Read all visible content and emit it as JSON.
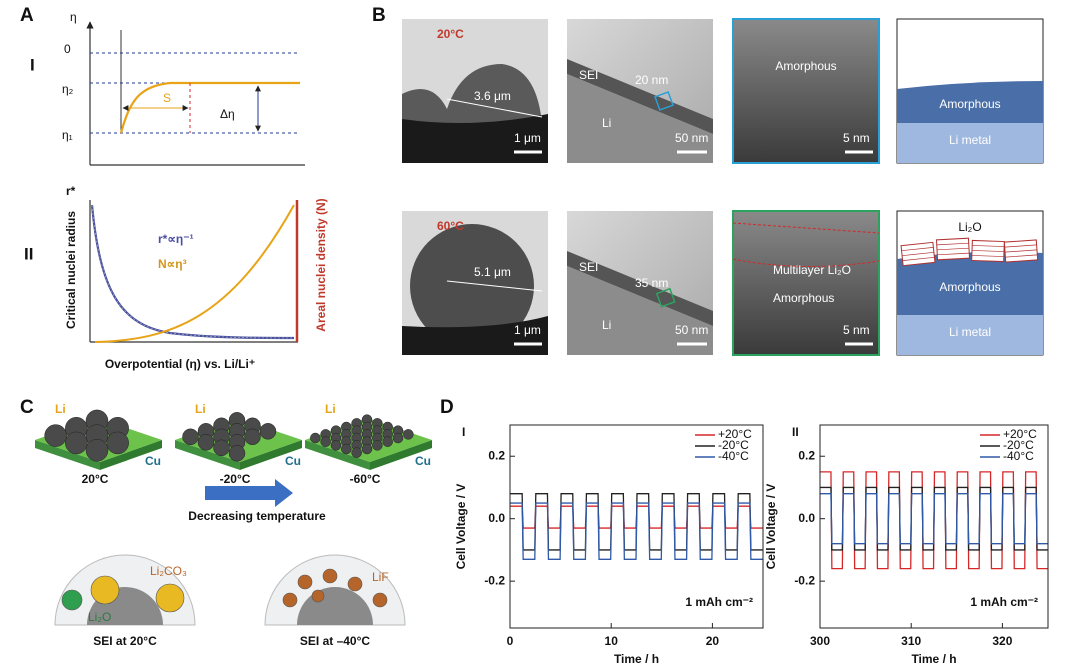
{
  "panel_a": {
    "label": "A",
    "part1": {
      "label": "I",
      "y_symbol": "η",
      "levels": [
        "0",
        "η₂",
        "η₁"
      ],
      "s": "S",
      "delta": "Δη"
    },
    "part2": {
      "label": "II",
      "y_symbol": "r*",
      "eq1": "r*∝η⁻¹",
      "eq2": "N∝η³",
      "y_label": "Critical nuclei radius",
      "y2_label": "Areal nuclei density (N)",
      "x_label": "Overpotential (η) vs. Li/Li⁺"
    }
  },
  "panel_b": {
    "label": "B",
    "rows": [
      {
        "temp": "20°C",
        "particle_size": "3.6 μm",
        "scale1": "1 μm",
        "sei": "SEI",
        "thickness": "20 nm",
        "li": "Li",
        "scale2": "50 nm",
        "amorphous": "Amorphous",
        "scale3": "5 nm",
        "model_amorphous": "Amorphous",
        "model_li": "Li metal"
      },
      {
        "temp": "60°C",
        "particle_size": "5.1 μm",
        "scale1": "1 μm",
        "sei": "SEI",
        "thickness": "35 nm",
        "li": "Li",
        "scale2": "50 nm",
        "multilayer": "Multilayer Li₂O",
        "amorphous": "Amorphous",
        "scale3": "5 nm",
        "model_li2o": "Li₂O",
        "model_amorphous": "Amorphous",
        "model_li": "Li metal"
      }
    ]
  },
  "panel_c": {
    "label": "C",
    "substrates": [
      {
        "top": "Li",
        "bottom": "Cu",
        "temp": "20°C"
      },
      {
        "top": "Li",
        "bottom": "Cu",
        "temp": "-20°C"
      },
      {
        "top": "Li",
        "bottom": "Cu",
        "temp": "-60°C"
      }
    ],
    "arrow": "Decreasing temperature",
    "sei": [
      {
        "species": [
          "Li₂CO₃",
          "Li₂O"
        ],
        "caption": "SEI at 20°C"
      },
      {
        "species": [
          "LiF"
        ],
        "caption": "SEI at –40°C"
      }
    ]
  },
  "panel_d": {
    "label": "D"
  },
  "chart_data": [
    {
      "type": "line",
      "title": "I",
      "x_label": "Time / h",
      "y_label": "Cell Voltage / V",
      "annotation": "1 mAh cm⁻²",
      "xlim": [
        0,
        25
      ],
      "xticks": [
        0,
        10,
        20
      ],
      "ylim": [
        -0.35,
        0.3
      ],
      "yticks": [
        -0.2,
        {
          "value": 0,
          "label": "0.0"
        },
        0.2
      ],
      "x": [
        0.05,
        1.2,
        1.3,
        2.45,
        2.55,
        3.7,
        3.8,
        4.95,
        5.05,
        6.2,
        6.3,
        7.45,
        7.55,
        8.7,
        8.8,
        9.95,
        10.05,
        11.2,
        11.3,
        12.45,
        12.55,
        13.7,
        13.8,
        14.95,
        15.05,
        16.2,
        16.3,
        17.45,
        17.55,
        18.7,
        18.8,
        19.95,
        20.05,
        21.2,
        21.3,
        22.45,
        22.55,
        23.7,
        23.8,
        24.95
      ],
      "series": [
        {
          "name": "+20°C",
          "color": "#d62728",
          "values": [
            0.04,
            0.04,
            -0.03,
            -0.03,
            0.04,
            0.04,
            -0.03,
            -0.03,
            0.04,
            0.04,
            -0.03,
            -0.03,
            0.04,
            0.04,
            -0.03,
            -0.03,
            0.04,
            0.04,
            -0.03,
            -0.03,
            0.04,
            0.04,
            -0.03,
            -0.03,
            0.04,
            0.04,
            -0.03,
            -0.03,
            0.04,
            0.04,
            -0.03,
            -0.03,
            0.04,
            0.04,
            -0.03,
            -0.03,
            0.04,
            0.04,
            -0.03,
            -0.03
          ]
        },
        {
          "name": "-20°C",
          "color": "#222222",
          "values": [
            0.08,
            0.08,
            -0.1,
            -0.1,
            0.08,
            0.08,
            -0.1,
            -0.1,
            0.08,
            0.08,
            -0.1,
            -0.1,
            0.08,
            0.08,
            -0.1,
            -0.1,
            0.08,
            0.08,
            -0.1,
            -0.1,
            0.08,
            0.08,
            -0.1,
            -0.1,
            0.08,
            0.08,
            -0.1,
            -0.1,
            0.08,
            0.08,
            -0.1,
            -0.1,
            0.08,
            0.08,
            -0.1,
            -0.1,
            0.08,
            0.08,
            -0.1,
            -0.1
          ]
        },
        {
          "name": "-40°C",
          "color": "#2f5aa8",
          "values": [
            0.05,
            0.05,
            -0.13,
            -0.13,
            0.05,
            0.05,
            -0.13,
            -0.13,
            0.05,
            0.05,
            -0.13,
            -0.13,
            0.05,
            0.05,
            -0.13,
            -0.13,
            0.05,
            0.05,
            -0.13,
            -0.13,
            0.05,
            0.05,
            -0.13,
            -0.13,
            0.05,
            0.05,
            -0.13,
            -0.13,
            0.05,
            0.05,
            -0.13,
            -0.13,
            0.05,
            0.05,
            -0.13,
            -0.13,
            0.05,
            0.05,
            -0.13,
            -0.13
          ]
        }
      ]
    },
    {
      "type": "line",
      "title": "II",
      "x_label": "Time / h",
      "y_label": "Cell Voltage / V",
      "annotation": "1 mAh cm⁻²",
      "xlim": [
        300,
        325
      ],
      "xticks": [
        300,
        310,
        320
      ],
      "ylim": [
        -0.35,
        0.3
      ],
      "yticks": [
        -0.2,
        {
          "value": 0,
          "label": "0.0"
        },
        0.2
      ],
      "x": [
        300.05,
        301.2,
        301.3,
        302.45,
        302.55,
        303.7,
        303.8,
        304.95,
        305.05,
        306.2,
        306.3,
        307.45,
        307.55,
        308.7,
        308.8,
        309.95,
        310.05,
        311.2,
        311.3,
        312.45,
        312.55,
        313.7,
        313.8,
        314.95,
        315.05,
        316.2,
        316.3,
        317.45,
        317.55,
        318.7,
        318.8,
        319.95,
        320.05,
        321.2,
        321.3,
        322.45,
        322.55,
        323.7,
        323.8,
        324.95
      ],
      "series": [
        {
          "name": "+20°C",
          "color": "#d62728",
          "values": [
            0.15,
            0.15,
            -0.16,
            -0.16,
            0.15,
            0.15,
            -0.16,
            -0.16,
            0.15,
            0.15,
            -0.16,
            -0.16,
            0.15,
            0.15,
            -0.16,
            -0.16,
            0.15,
            0.15,
            -0.16,
            -0.16,
            0.15,
            0.15,
            -0.16,
            -0.16,
            0.15,
            0.15,
            -0.16,
            -0.16,
            0.15,
            0.15,
            -0.16,
            -0.16,
            0.15,
            0.15,
            -0.16,
            -0.16,
            0.15,
            0.15,
            -0.16,
            -0.16
          ]
        },
        {
          "name": "-20°C",
          "color": "#222222",
          "values": [
            0.1,
            0.1,
            -0.1,
            -0.1,
            0.1,
            0.1,
            -0.1,
            -0.1,
            0.1,
            0.1,
            -0.1,
            -0.1,
            0.1,
            0.1,
            -0.1,
            -0.1,
            0.1,
            0.1,
            -0.1,
            -0.1,
            0.1,
            0.1,
            -0.1,
            -0.1,
            0.1,
            0.1,
            -0.1,
            -0.1,
            0.1,
            0.1,
            -0.1,
            -0.1,
            0.1,
            0.1,
            -0.1,
            -0.1,
            0.1,
            0.1,
            -0.1,
            -0.1
          ]
        },
        {
          "name": "-40°C",
          "color": "#2f5aa8",
          "values": [
            0.08,
            0.08,
            -0.08,
            -0.08,
            0.08,
            0.08,
            -0.08,
            -0.08,
            0.08,
            0.08,
            -0.08,
            -0.08,
            0.08,
            0.08,
            -0.08,
            -0.08,
            0.08,
            0.08,
            -0.08,
            -0.08,
            0.08,
            0.08,
            -0.08,
            -0.08,
            0.08,
            0.08,
            -0.08,
            -0.08,
            0.08,
            0.08,
            -0.08,
            -0.08,
            0.08,
            0.08,
            -0.08,
            -0.08,
            0.08,
            0.08,
            -0.08,
            -0.08
          ]
        }
      ]
    }
  ]
}
